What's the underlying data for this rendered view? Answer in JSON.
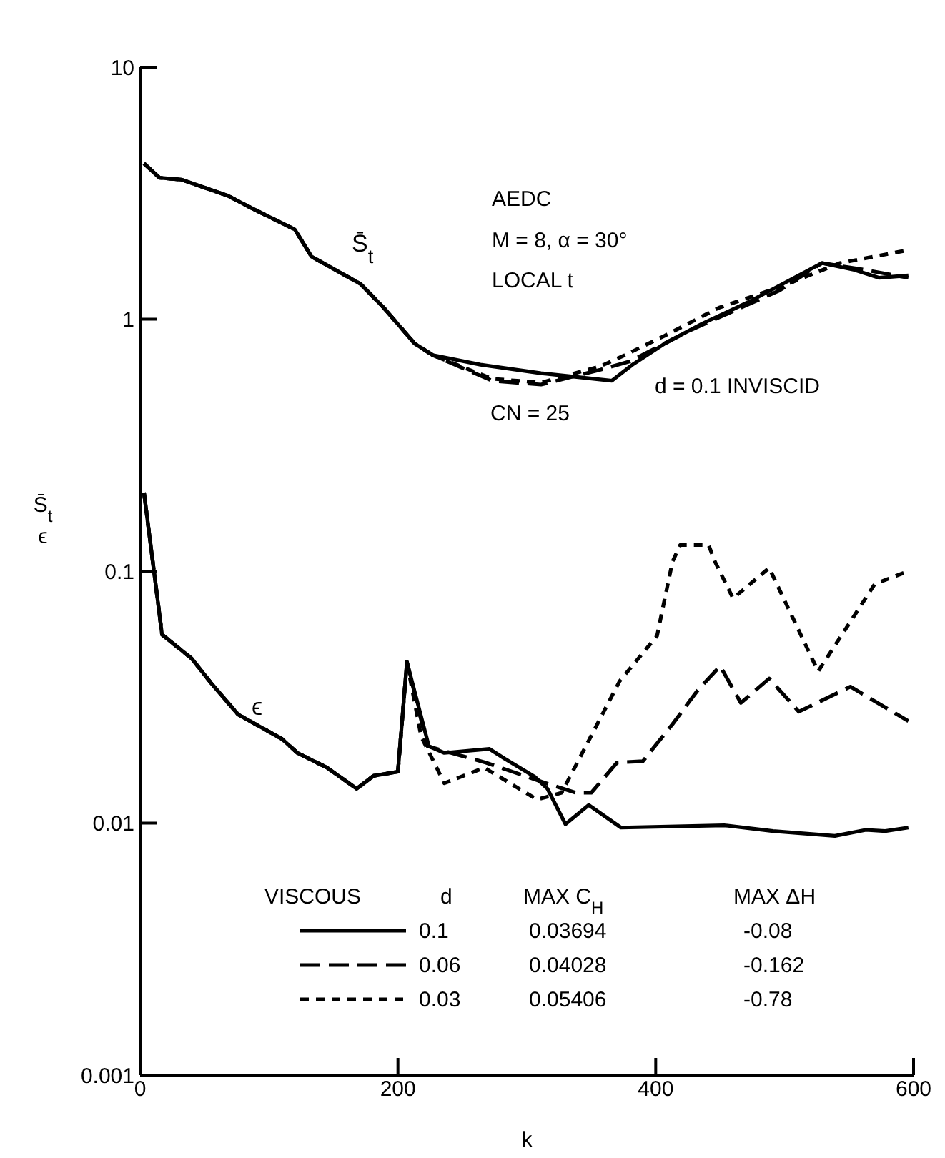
{
  "chart_data": {
    "type": "line",
    "xlabel": "k",
    "ylabel": "S̄$_{t}$\nϵ",
    "legend_title": "VISCOUS",
    "legend": "bottom",
    "log": true,
    "xlim": [
      0,
      600
    ],
    "xticks": [
      0,
      200,
      400,
      600
    ],
    "ylim": [
      0.001,
      10
    ],
    "yticks": [
      0.001,
      0.01,
      0.1,
      1,
      10
    ],
    "series": [
      {
        "name": "0.1",
        "color": "#000000",
        "line_style": "solid",
        "x": [
          3,
          17,
          40,
          55,
          76,
          110,
          122,
          145,
          168,
          181,
          200,
          207,
          224,
          236,
          271,
          283,
          306,
          316,
          330,
          348,
          373,
          453,
          491,
          539,
          563,
          578,
          596
        ],
        "values": [
          0.205,
          0.056,
          0.045,
          0.036,
          0.027,
          0.0216,
          0.019,
          0.0166,
          0.0137,
          0.0154,
          0.016,
          0.0436,
          0.0202,
          0.019,
          0.0197,
          0.018,
          0.0153,
          0.0137,
          0.0099,
          0.0118,
          0.0096,
          0.0098,
          0.0093,
          0.0089,
          0.0094,
          0.0093,
          0.0096
        ]
      },
      {
        "name": "0.06",
        "color": "#000000",
        "line_style": "dashed",
        "x": [
          3,
          17,
          40,
          55,
          76,
          110,
          122,
          145,
          168,
          181,
          200,
          207,
          223,
          268,
          315,
          338,
          350,
          370,
          390,
          413,
          433,
          450,
          466,
          488,
          511,
          551,
          596
        ],
        "values": [
          0.205,
          0.056,
          0.045,
          0.036,
          0.027,
          0.0216,
          0.019,
          0.0166,
          0.0137,
          0.0154,
          0.016,
          0.0436,
          0.0202,
          0.0174,
          0.0144,
          0.0132,
          0.0132,
          0.0174,
          0.0176,
          0.0247,
          0.0339,
          0.042,
          0.03,
          0.0375,
          0.0277,
          0.0348,
          0.0254
        ]
      },
      {
        "name": "0.03",
        "color": "#000000",
        "line_style": "dashed",
        "x": [
          3,
          17,
          40,
          55,
          76,
          110,
          122,
          145,
          168,
          181,
          200,
          207,
          218,
          236,
          267,
          308,
          327,
          372,
          401,
          413,
          419,
          441,
          446,
          460,
          488,
          526,
          570,
          596
        ],
        "values": [
          0.205,
          0.056,
          0.045,
          0.036,
          0.027,
          0.0216,
          0.019,
          0.0166,
          0.0137,
          0.0154,
          0.016,
          0.0436,
          0.0221,
          0.0144,
          0.0166,
          0.0124,
          0.0132,
          0.0366,
          0.0553,
          0.109,
          0.127,
          0.127,
          0.109,
          0.078,
          0.103,
          0.04,
          0.089,
          0.1
        ]
      },
      {
        "color": "#000000",
        "line_style": "solid",
        "x": [
          3,
          15,
          32,
          68,
          87,
          120,
          133,
          171,
          189,
          213,
          227,
          264,
          311,
          366,
          382,
          407,
          436,
          472,
          529,
          554,
          573,
          596
        ],
        "values": [
          4.15,
          3.64,
          3.58,
          3.09,
          2.75,
          2.27,
          1.77,
          1.38,
          1.11,
          0.8,
          0.72,
          0.66,
          0.61,
          0.57,
          0.66,
          0.8,
          0.96,
          1.17,
          1.67,
          1.57,
          1.46,
          1.49
        ]
      },
      {
        "color": "#000000",
        "line_style": "dashed",
        "x": [
          3,
          15,
          32,
          68,
          87,
          120,
          133,
          171,
          189,
          213,
          227,
          273,
          311,
          357,
          380,
          426,
          496,
          529,
          562,
          596
        ],
        "values": [
          4.15,
          3.64,
          3.58,
          3.09,
          2.75,
          2.27,
          1.77,
          1.38,
          1.11,
          0.8,
          0.72,
          0.57,
          0.55,
          0.63,
          0.68,
          0.9,
          1.3,
          1.67,
          1.57,
          1.46
        ]
      },
      {
        "color": "#000000",
        "line_style": "dashed",
        "x": [
          3,
          15,
          32,
          68,
          87,
          120,
          133,
          171,
          189,
          213,
          227,
          273,
          311,
          357,
          376,
          407,
          449,
          496,
          543,
          596
        ],
        "values": [
          4.15,
          3.64,
          3.58,
          3.09,
          2.75,
          2.27,
          1.77,
          1.38,
          1.11,
          0.8,
          0.72,
          0.58,
          0.56,
          0.65,
          0.72,
          0.86,
          1.11,
          1.34,
          1.67,
          1.88
        ]
      }
    ],
    "annotations": [
      "AEDC",
      "M = 8, α = 30°",
      "LOCAL t",
      "d = 0.1 INVISCID",
      "CN = 25",
      "d",
      "MAX C$_{H}$",
      "MAX ΔH",
      "0.03694",
      "-0.08",
      "0.04028",
      "-0.162",
      "0.05406",
      "-0.78",
      "S̄$_{t}$",
      "ϵ"
    ]
  }
}
